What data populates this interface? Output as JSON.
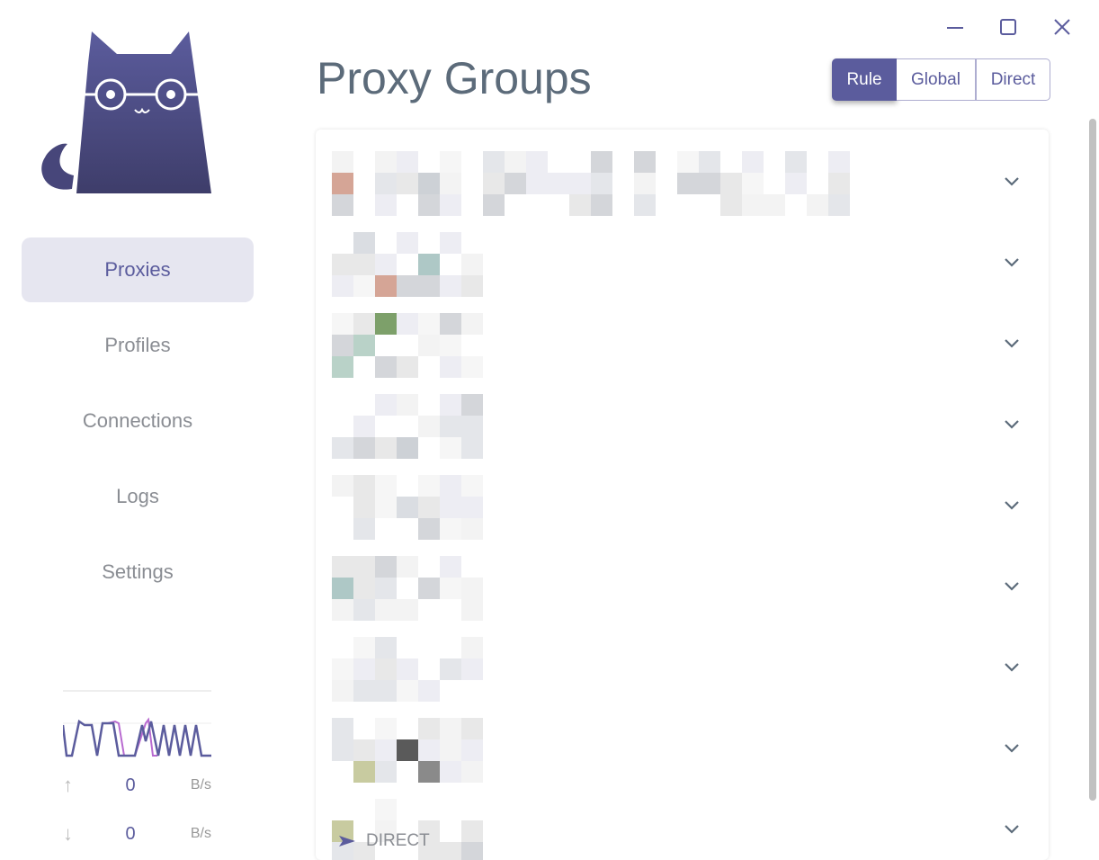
{
  "window": {
    "minimize": "minimize",
    "maximize": "maximize",
    "close": "close"
  },
  "sidebar": {
    "items": [
      {
        "label": "Proxies",
        "active": true
      },
      {
        "label": "Profiles"
      },
      {
        "label": "Connections"
      },
      {
        "label": "Logs"
      },
      {
        "label": "Settings"
      }
    ]
  },
  "traffic": {
    "upload": {
      "value": "0",
      "unit": "B/s"
    },
    "download": {
      "value": "0",
      "unit": "B/s"
    }
  },
  "header": {
    "title": "Proxy Groups",
    "modes": [
      "Rule",
      "Global",
      "Direct"
    ],
    "active_mode": "Rule"
  },
  "groups": {
    "count_visible": 9,
    "last_group_selected": "DIRECT"
  },
  "colors": {
    "accent": "#5b5c9d",
    "upload_line": "#b86ad0",
    "download_line": "#5b5c9d"
  }
}
